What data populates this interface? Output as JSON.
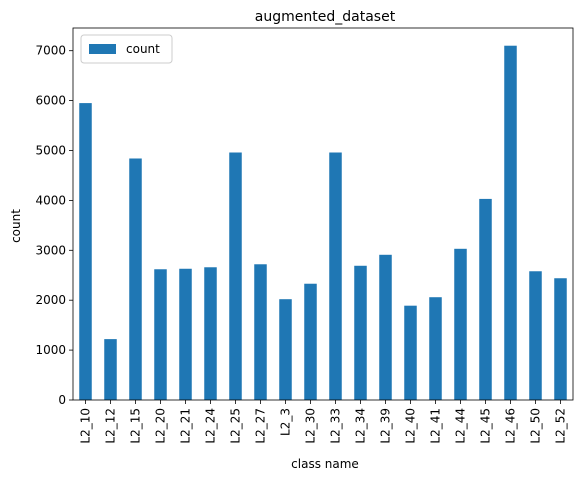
{
  "chart_data": {
    "type": "bar",
    "title": "augmented_dataset",
    "xlabel": "class name",
    "ylabel": "count",
    "categories": [
      "L2_10",
      "L2_12",
      "L2_15",
      "L2_20",
      "L2_21",
      "L2_24",
      "L2_25",
      "L2_27",
      "L2_3",
      "L2_30",
      "L2_33",
      "L2_34",
      "L2_39",
      "L2_40",
      "L2_41",
      "L2_44",
      "L2_45",
      "L2_46",
      "L2_50",
      "L2_52"
    ],
    "series": [
      {
        "name": "count",
        "values": [
          5950,
          1220,
          4840,
          2620,
          2630,
          2660,
          4960,
          2720,
          2020,
          2330,
          4960,
          2690,
          2910,
          1890,
          2060,
          3030,
          4030,
          7100,
          2580,
          2440
        ]
      }
    ],
    "ylim": [
      0,
      7455
    ],
    "yticks": [
      0,
      1000,
      2000,
      3000,
      4000,
      5000,
      6000,
      7000
    ],
    "grid": false,
    "legend_position": "top-left",
    "bar_color": "#1f77b4"
  }
}
